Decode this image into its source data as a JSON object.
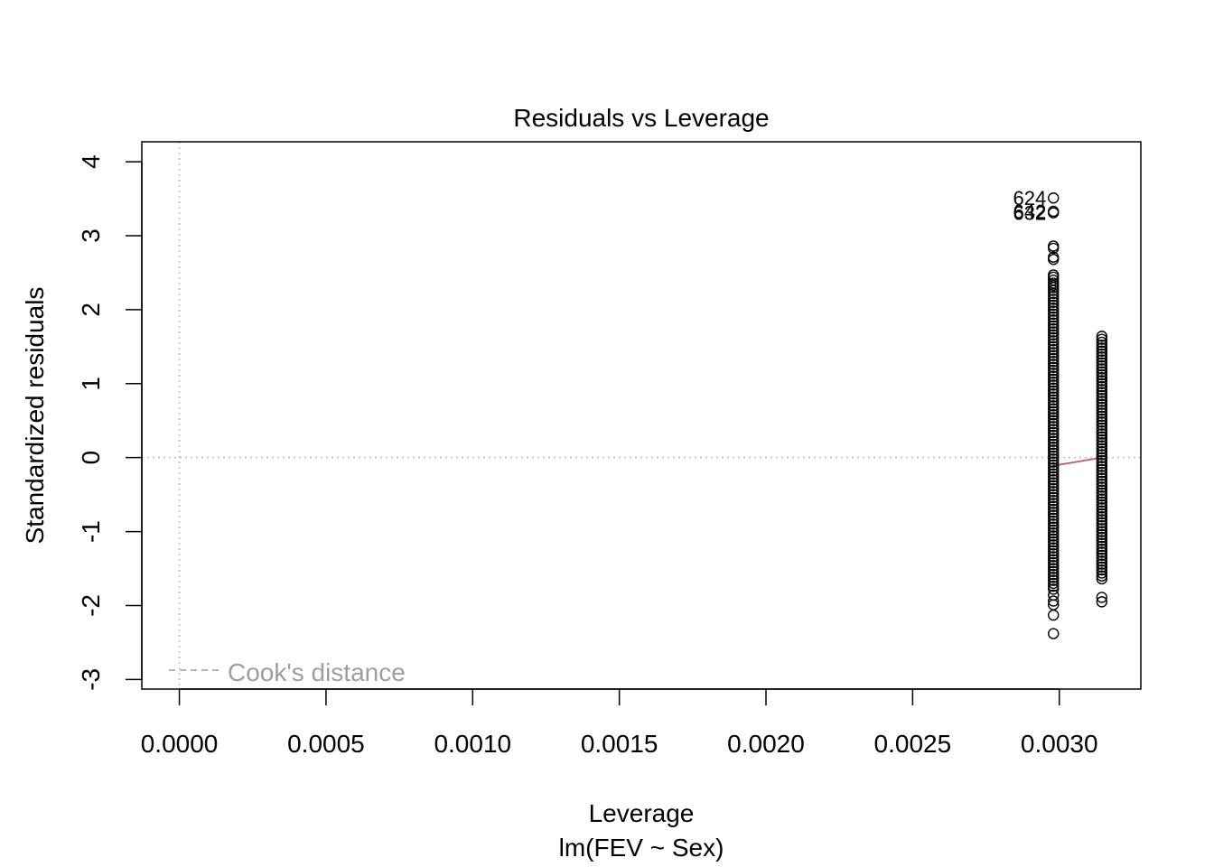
{
  "chart_data": {
    "type": "scatter",
    "title": "Residuals vs Leverage",
    "xlabel": "Leverage",
    "subtitle": "lm(FEV ~ Sex)",
    "ylabel": "Standardized residuals",
    "xlim": [
      -0.000128,
      0.003278
    ],
    "ylim": [
      -3.13,
      4.27
    ],
    "x_ticks": [
      0.0,
      0.0005,
      0.001,
      0.0015,
      0.002,
      0.0025,
      0.003
    ],
    "x_tick_labels": [
      "0.0000",
      "0.0005",
      "0.0010",
      "0.0015",
      "0.0020",
      "0.0025",
      "0.0030"
    ],
    "y_ticks": [
      -3,
      -2,
      -1,
      0,
      1,
      2,
      3,
      4
    ],
    "y_tick_labels": [
      "-3",
      "-2",
      "-1",
      "0",
      "1",
      "2",
      "3",
      "4"
    ],
    "reference_lines": {
      "h": 0,
      "v": 0,
      "style": "dotted",
      "color": "#bebebe"
    },
    "legend": {
      "entries": [
        "Cook's distance"
      ],
      "position": "bottom-left",
      "line_style": "dashed",
      "color": "#9e9e9e"
    },
    "series": [
      {
        "x": 0.00298,
        "y": [
          3.51,
          3.33,
          3.31,
          2.86,
          2.83,
          2.71,
          2.68,
          2.47,
          2.44,
          2.4,
          2.36,
          2.33,
          2.3,
          2.26,
          2.22,
          2.18,
          2.14,
          2.1,
          2.06,
          2.02,
          1.98,
          1.94,
          1.9,
          1.86,
          1.82,
          1.78,
          1.74,
          1.7,
          1.66,
          1.62,
          1.58,
          1.54,
          1.5,
          1.46,
          1.42,
          1.38,
          1.34,
          1.3,
          1.26,
          1.22,
          1.18,
          1.14,
          1.1,
          1.06,
          1.02,
          0.98,
          0.94,
          0.9,
          0.86,
          0.82,
          0.78,
          0.74,
          0.7,
          0.66,
          0.62,
          0.58,
          0.54,
          0.5,
          0.46,
          0.42,
          0.38,
          0.34,
          0.3,
          0.26,
          0.22,
          0.18,
          0.14,
          0.1,
          0.06,
          0.02,
          -0.02,
          -0.06,
          -0.1,
          -0.14,
          -0.18,
          -0.22,
          -0.26,
          -0.3,
          -0.34,
          -0.38,
          -0.42,
          -0.46,
          -0.5,
          -0.54,
          -0.58,
          -0.62,
          -0.66,
          -0.7,
          -0.74,
          -0.78,
          -0.82,
          -0.86,
          -0.9,
          -0.94,
          -0.98,
          -1.02,
          -1.06,
          -1.1,
          -1.14,
          -1.18,
          -1.22,
          -1.26,
          -1.3,
          -1.34,
          -1.38,
          -1.42,
          -1.46,
          -1.5,
          -1.54,
          -1.58,
          -1.62,
          -1.66,
          -1.7,
          -1.74,
          -1.78,
          -1.86,
          -1.94,
          -1.99,
          -2.13,
          -2.38
        ]
      },
      {
        "x": 0.003145,
        "y": [
          1.64,
          1.6,
          1.56,
          1.52,
          1.48,
          1.44,
          1.4,
          1.36,
          1.32,
          1.28,
          1.24,
          1.2,
          1.16,
          1.12,
          1.08,
          1.04,
          1.0,
          0.96,
          0.92,
          0.88,
          0.84,
          0.8,
          0.76,
          0.72,
          0.68,
          0.64,
          0.6,
          0.56,
          0.52,
          0.48,
          0.44,
          0.4,
          0.36,
          0.32,
          0.28,
          0.24,
          0.2,
          0.16,
          0.12,
          0.08,
          0.04,
          0.0,
          -0.04,
          -0.08,
          -0.12,
          -0.16,
          -0.2,
          -0.24,
          -0.28,
          -0.32,
          -0.36,
          -0.4,
          -0.44,
          -0.48,
          -0.52,
          -0.56,
          -0.6,
          -0.64,
          -0.68,
          -0.72,
          -0.76,
          -0.8,
          -0.84,
          -0.88,
          -0.92,
          -0.96,
          -1.0,
          -1.04,
          -1.08,
          -1.12,
          -1.16,
          -1.2,
          -1.24,
          -1.28,
          -1.32,
          -1.36,
          -1.4,
          -1.44,
          -1.48,
          -1.52,
          -1.56,
          -1.6,
          -1.64,
          -1.89,
          -1.95
        ]
      }
    ],
    "point_labels": [
      {
        "text": "624",
        "x": 0.00298,
        "y": 3.51
      },
      {
        "text": "642",
        "x": 0.00298,
        "y": 3.33
      },
      {
        "text": "632",
        "x": 0.00298,
        "y": 3.31
      }
    ],
    "smooth_line": {
      "color": "#c45a78",
      "points": [
        [
          0.00298,
          -0.11
        ],
        [
          0.003145,
          0.0
        ]
      ]
    }
  }
}
